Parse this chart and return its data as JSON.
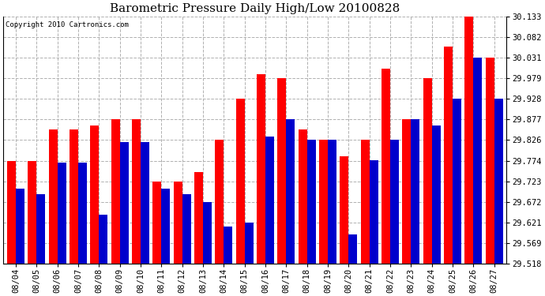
{
  "title": "Barometric Pressure Daily High/Low 20100828",
  "copyright": "Copyright 2010 Cartronics.com",
  "categories": [
    "08/04",
    "08/05",
    "08/06",
    "08/07",
    "08/08",
    "08/09",
    "08/10",
    "08/11",
    "08/12",
    "08/13",
    "08/14",
    "08/15",
    "08/16",
    "08/17",
    "08/18",
    "08/19",
    "08/20",
    "08/21",
    "08/22",
    "08/23",
    "08/24",
    "08/25",
    "08/26",
    "08/27"
  ],
  "highs": [
    29.774,
    29.774,
    29.851,
    29.851,
    29.862,
    29.877,
    29.877,
    29.723,
    29.723,
    29.745,
    29.826,
    29.928,
    29.99,
    29.979,
    29.851,
    29.826,
    29.785,
    29.826,
    30.003,
    29.877,
    29.979,
    30.057,
    30.133,
    30.031
  ],
  "lows": [
    29.705,
    29.69,
    29.77,
    29.77,
    29.64,
    29.82,
    29.82,
    29.705,
    29.69,
    29.672,
    29.61,
    29.62,
    29.835,
    29.877,
    29.826,
    29.826,
    29.59,
    29.775,
    29.826,
    29.877,
    29.862,
    29.928,
    30.031,
    29.928
  ],
  "ylim": [
    29.518,
    30.133
  ],
  "yticks": [
    29.518,
    29.569,
    29.621,
    29.672,
    29.723,
    29.774,
    29.826,
    29.877,
    29.928,
    29.979,
    30.031,
    30.082,
    30.133
  ],
  "bar_width": 0.42,
  "high_color": "#ff0000",
  "low_color": "#0000cc",
  "bg_color": "#ffffff",
  "grid_color": "#b0b0b0",
  "title_fontsize": 11,
  "tick_fontsize": 7.5,
  "copyright_fontsize": 6.5
}
